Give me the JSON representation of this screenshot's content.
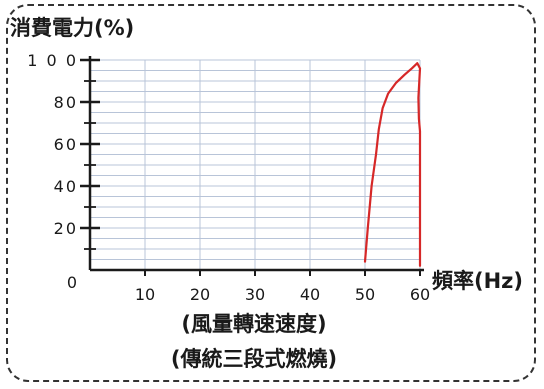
{
  "chart_data": {
    "type": "line",
    "ylabel": "消費電力(%)",
    "xlabel": "頻率(Hz)",
    "captions": [
      "(風量轉速速度)",
      "(傳統三段式燃燒)"
    ],
    "x_ticks": [
      "0",
      "10",
      "20",
      "30",
      "40",
      "50",
      "60"
    ],
    "y_ticks": [
      "20",
      "40",
      "60",
      "80",
      "1 0 0"
    ],
    "xlim": [
      0,
      60
    ],
    "ylim": [
      0,
      100
    ],
    "grid": true,
    "series_color": "#d62828",
    "series": [
      {
        "x": [
          50,
          50.5,
          51.2,
          52,
          52.5,
          53.2,
          54.2,
          55.6,
          57.2,
          58.5,
          59.5,
          60,
          59.7,
          59.8,
          60,
          60
        ],
        "y": [
          4,
          20,
          40,
          55,
          67,
          77,
          84,
          89,
          93,
          96,
          98.5,
          96,
          82,
          72,
          66,
          2
        ]
      }
    ]
  }
}
